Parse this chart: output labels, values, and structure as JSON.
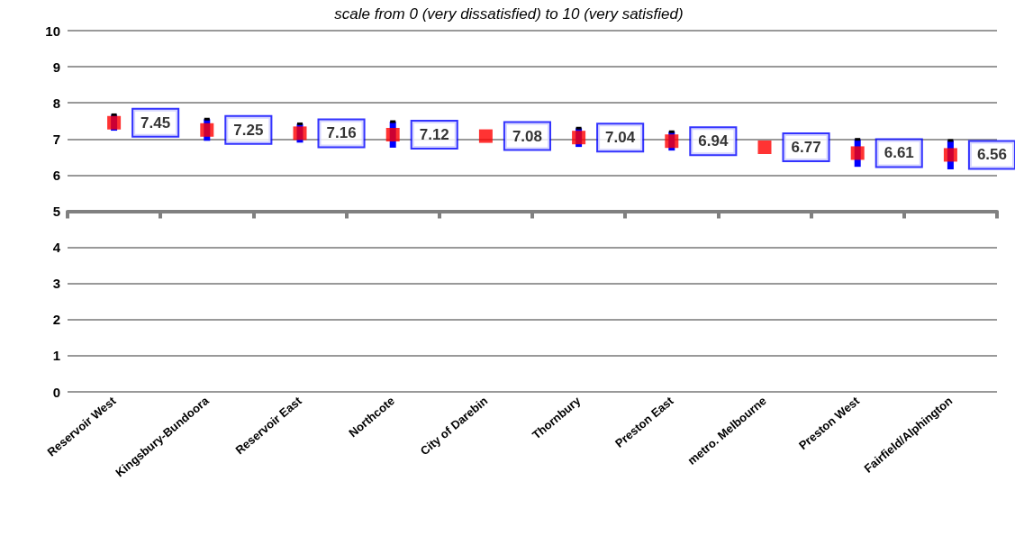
{
  "chart_data": {
    "type": "scatter",
    "subtitle": "scale from 0 (very dissatisfied) to 10 (very satisfied)",
    "categories": [
      "Reservoir West",
      "Kingsbury-Bundoora",
      "Reservoir East",
      "Northcote",
      "City of Darebin",
      "Thornbury",
      "Preston East",
      "metro. Melbourne",
      "Preston West",
      "Fairfield/Alphington"
    ],
    "series": [
      {
        "color": "#ff0000",
        "values": [
          7.45,
          7.25,
          7.16,
          7.12,
          7.08,
          7.04,
          6.94,
          6.77,
          6.61,
          6.56
        ],
        "errors": [
          0.22,
          0.3,
          0.26,
          0.36,
          null,
          0.26,
          0.26,
          null,
          0.38,
          0.4
        ]
      }
    ],
    "data_labels": true,
    "marker": "square",
    "ylim": [
      0,
      10
    ],
    "yticks": [
      0,
      1,
      2,
      3,
      4,
      5,
      6,
      7,
      8,
      9,
      10
    ],
    "grid": "y",
    "ref_lines": [
      {
        "axis": "y",
        "value": 5,
        "color": "#808080"
      }
    ]
  }
}
